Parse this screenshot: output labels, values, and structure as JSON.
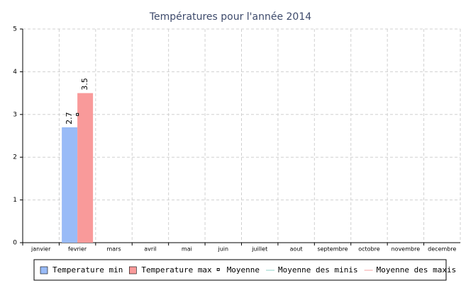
{
  "chart_data": {
    "type": "bar",
    "title": "Températures pour l'année 2014",
    "categories": [
      "janvier",
      "fevrier",
      "mars",
      "avril",
      "mai",
      "juin",
      "juillet",
      "aout",
      "septembre",
      "octobre",
      "novembre",
      "decembre"
    ],
    "series": [
      {
        "name": "Temperature min",
        "type": "bar",
        "color": "#99bbf7",
        "values": [
          null,
          2.7,
          null,
          null,
          null,
          null,
          null,
          null,
          null,
          null,
          null,
          null
        ]
      },
      {
        "name": "Temperature max",
        "type": "bar",
        "color": "#f99a9a",
        "values": [
          null,
          3.5,
          null,
          null,
          null,
          null,
          null,
          null,
          null,
          null,
          null,
          null
        ]
      },
      {
        "name": "Moyenne",
        "type": "scatter",
        "color": "#000000",
        "values": [
          null,
          3.0,
          null,
          null,
          null,
          null,
          null,
          null,
          null,
          null,
          null,
          null
        ]
      },
      {
        "name": "Moyenne des minis",
        "type": "line",
        "color": "#8fd3c9",
        "values": [
          null,
          null,
          null,
          null,
          null,
          null,
          null,
          null,
          null,
          null,
          null,
          null
        ]
      },
      {
        "name": "Moyenne des maxis",
        "type": "line",
        "color": "#f5a3a3",
        "values": [
          null,
          null,
          null,
          null,
          null,
          null,
          null,
          null,
          null,
          null,
          null,
          null
        ]
      }
    ],
    "ylim": [
      0,
      5
    ],
    "yticks": [
      0,
      1,
      2,
      3,
      4,
      5
    ],
    "grid": true,
    "legend": "bottom"
  }
}
